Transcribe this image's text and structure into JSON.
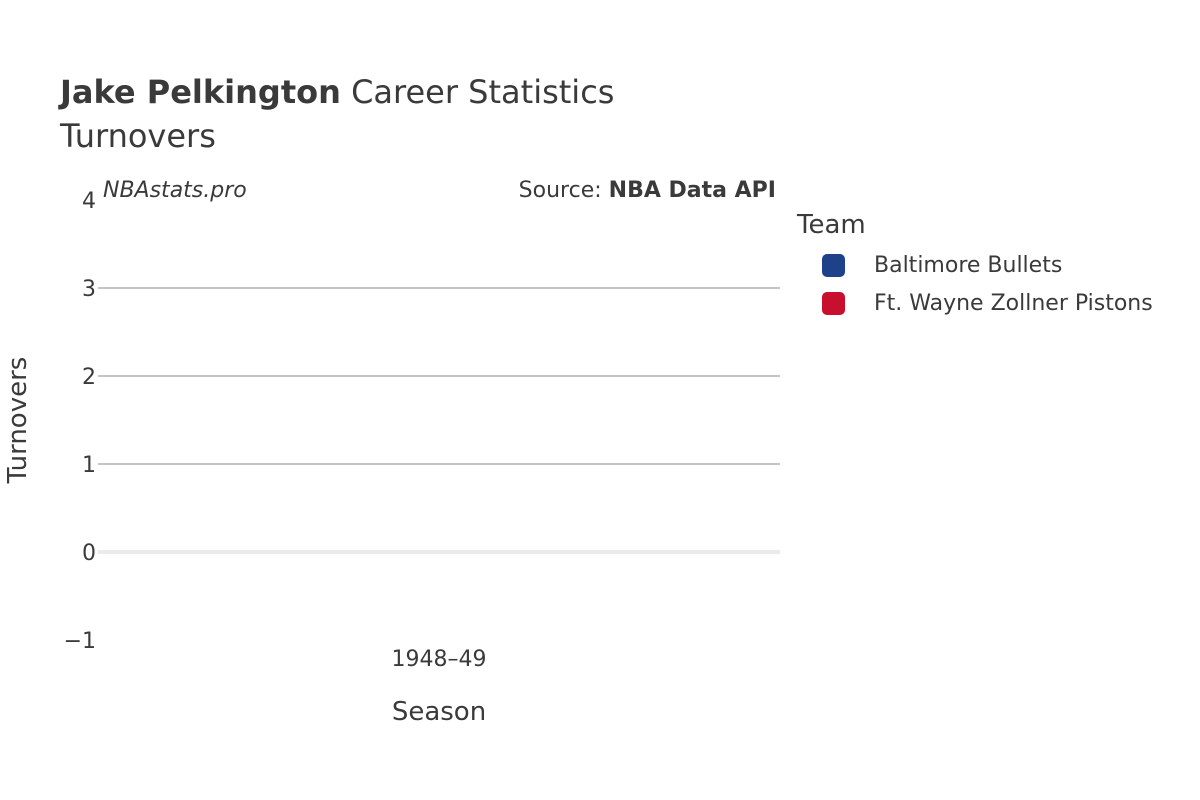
{
  "chart_data": {
    "type": "bar",
    "title_player": "Jake Pelkington",
    "title_rest": "Career Statistics",
    "subtitle": "Turnovers",
    "watermark": "NBAstats.pro",
    "source_prefix": "Source:",
    "source_name": "NBA Data API",
    "xlabel": "Season",
    "ylabel": "Turnovers",
    "categories": [
      "1948–49"
    ],
    "ylim": [
      -1,
      4
    ],
    "yticks": [
      -1,
      0,
      1,
      2,
      3,
      4
    ],
    "ytick_labels": [
      "−1",
      "0",
      "1",
      "2",
      "3",
      "4"
    ],
    "grid": true,
    "legend_title": "Team",
    "legend_position": "right",
    "series": [
      {
        "name": "Baltimore Bullets",
        "color": "#1d428a",
        "values": [
          null
        ]
      },
      {
        "name": "Ft. Wayne Zollner Pistons",
        "color": "#c8102e",
        "values": [
          null
        ]
      }
    ]
  }
}
